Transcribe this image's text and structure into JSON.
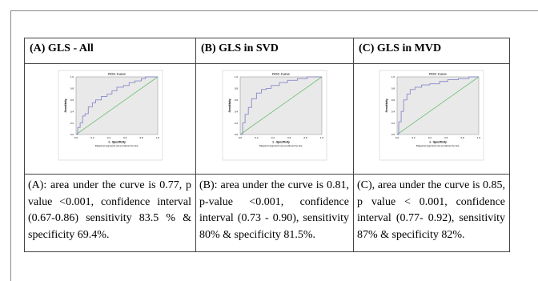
{
  "panels": [
    {
      "heading": "(A) GLS - All",
      "caption": "(A): area under the curve is 0.77, p value <0.001, confidence interval (0.67-0.86) sensitivity 83.5 % & specificity 69.4%.",
      "roc": {
        "fpr": [
          0,
          0.02,
          0.02,
          0.05,
          0.05,
          0.08,
          0.08,
          0.11,
          0.11,
          0.15,
          0.15,
          0.2,
          0.2,
          0.24,
          0.24,
          0.31,
          0.31,
          0.38,
          0.38,
          0.44,
          0.44,
          0.5,
          0.5,
          0.58,
          0.58,
          0.65,
          0.65,
          0.72,
          0.72,
          0.8,
          0.8,
          0.85,
          0.85,
          1.0
        ],
        "tpr": [
          0,
          0,
          0.12,
          0.12,
          0.2,
          0.2,
          0.32,
          0.32,
          0.36,
          0.36,
          0.48,
          0.48,
          0.55,
          0.55,
          0.6,
          0.6,
          0.66,
          0.66,
          0.7,
          0.7,
          0.76,
          0.76,
          0.82,
          0.82,
          0.85,
          0.85,
          0.9,
          0.9,
          0.93,
          0.93,
          0.97,
          0.97,
          1.0,
          1.0
        ]
      }
    },
    {
      "heading": "(B) GLS in SVD",
      "caption": "(B): area under the curve is 0.81, p-value <0.001, confidence interval (0.73 - 0.90), sensitivity 80% & specificity 81.5%.",
      "roc": {
        "fpr": [
          0,
          0.03,
          0.03,
          0.06,
          0.06,
          0.1,
          0.1,
          0.14,
          0.14,
          0.2,
          0.2,
          0.26,
          0.26,
          0.32,
          0.32,
          0.38,
          0.38,
          0.48,
          0.48,
          0.58,
          0.58,
          0.7,
          0.7,
          0.82,
          0.82,
          1.0
        ],
        "tpr": [
          0,
          0,
          0.2,
          0.2,
          0.35,
          0.35,
          0.47,
          0.47,
          0.62,
          0.62,
          0.72,
          0.72,
          0.78,
          0.78,
          0.8,
          0.8,
          0.85,
          0.85,
          0.9,
          0.9,
          0.94,
          0.94,
          0.97,
          0.97,
          1.0,
          1.0
        ]
      }
    },
    {
      "heading": "(C) GLS in MVD",
      "caption": "(C), area under the curve is 0.85, p value < 0.001, confidence interval (0.77- 0.92), sensitivity 87% & specificity 82%.",
      "roc": {
        "fpr": [
          0,
          0.02,
          0.02,
          0.05,
          0.05,
          0.08,
          0.08,
          0.12,
          0.12,
          0.16,
          0.16,
          0.22,
          0.22,
          0.3,
          0.3,
          0.4,
          0.4,
          0.52,
          0.52,
          0.62,
          0.62,
          0.75,
          0.75,
          0.88,
          0.88,
          1.0
        ],
        "tpr": [
          0,
          0,
          0.22,
          0.22,
          0.4,
          0.4,
          0.6,
          0.6,
          0.7,
          0.7,
          0.78,
          0.78,
          0.82,
          0.82,
          0.86,
          0.86,
          0.88,
          0.88,
          0.92,
          0.92,
          0.95,
          0.95,
          0.97,
          0.97,
          1.0,
          1.0
        ]
      }
    }
  ],
  "plot_text": {
    "title": "ROC Curve",
    "ylabel": "Sensitivity",
    "xlabel": "1 - Specificity",
    "footnote": "Diagonal segments are produced by ties.",
    "ticks": [
      "0.0",
      "0.2",
      "0.4",
      "0.6",
      "0.8",
      "1.0"
    ]
  },
  "colors": {
    "curve": "#8989c9",
    "diagonal": "#6fbf6f",
    "plot_bg": "#e9e9e9"
  }
}
